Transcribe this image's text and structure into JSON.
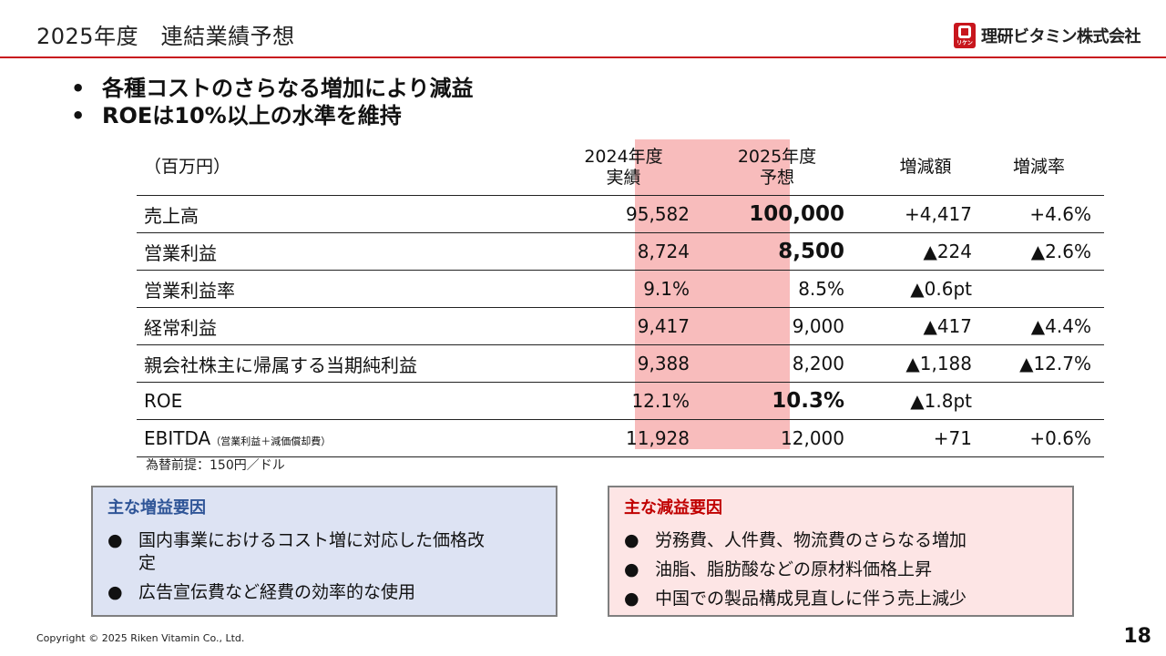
{
  "header": {
    "title": "2025年度　連結業績予想",
    "logo_text": "理研ビタミン株式会社",
    "logo_mark_text": "リケン"
  },
  "bullets": [
    "各種コストのさらなる増加により減益",
    "ROEは10%以上の水準を維持"
  ],
  "bullet_glyph": "•",
  "table": {
    "headers": {
      "unit": "（百万円）",
      "fy2024_line1": "2024年度",
      "fy2024_line2": "実績",
      "fy2025_line1": "2025年度",
      "fy2025_line2": "予想",
      "change": "増減額",
      "change_rate": "増減率"
    },
    "rows": [
      {
        "label": "売上高",
        "note": "",
        "fy2024": "95,582",
        "fy2025": "100,000",
        "change": "+4,417",
        "rate": "+4.6%"
      },
      {
        "label": "営業利益",
        "note": "",
        "fy2024": "8,724",
        "fy2025": "8,500",
        "change": "▲224",
        "rate": "▲2.6%"
      },
      {
        "label": "営業利益率",
        "note": "",
        "fy2024": "9.1%",
        "fy2025": "8.5%",
        "change": "▲0.6pt",
        "rate": ""
      },
      {
        "label": "経常利益",
        "note": "",
        "fy2024": "9,417",
        "fy2025": "9,000",
        "change": "▲417",
        "rate": "▲4.4%"
      },
      {
        "label": "親会社株主に帰属する当期純利益",
        "note": "",
        "fy2024": "9,388",
        "fy2025": "8,200",
        "change": "▲1,188",
        "rate": "▲12.7%"
      },
      {
        "label": "ROE",
        "note": "",
        "fy2024": "12.1%",
        "fy2025": "10.3%",
        "change": "▲1.8pt",
        "rate": ""
      },
      {
        "label": "EBITDA",
        "note": "（営業利益＋減価償却費）",
        "fy2024": "11,928",
        "fy2025": "12,000",
        "change": "+71",
        "rate": "+0.6%"
      }
    ],
    "highlight_color": "#f8bcbc"
  },
  "fx_note": "為替前提：150円／ドル",
  "increase_box": {
    "title": "主な増益要因",
    "items": [
      "国内事業におけるコスト増に対応した価格改定",
      "広告宣伝費など経費の効率的な使用"
    ],
    "title_color": "#2f5597",
    "background": "#dde3f3"
  },
  "decrease_box": {
    "title": "主な減益要因",
    "items": [
      "労務費、人件費、物流費のさらなる増加",
      "油脂、脂肪酸などの原材料価格上昇",
      "中国での製品構成見直しに伴う売上減少"
    ],
    "title_color": "#c00000",
    "background": "#fde5e5"
  },
  "list_glyph": "●",
  "footer": {
    "copyright": "Copyright © 2025 Riken Vitamin Co., Ltd.",
    "page_number": "18"
  },
  "accent_color": "#c8161d"
}
